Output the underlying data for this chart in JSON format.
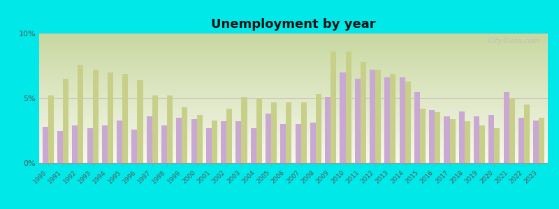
{
  "title": "Unemployment by year",
  "years": [
    1990,
    1991,
    1992,
    1993,
    1994,
    1995,
    1996,
    1997,
    1998,
    1999,
    2000,
    2001,
    2002,
    2003,
    2004,
    2005,
    2006,
    2007,
    2008,
    2009,
    2010,
    2011,
    2012,
    2013,
    2014,
    2015,
    2016,
    2017,
    2018,
    2019,
    2020,
    2021,
    2022,
    2023
  ],
  "castine": [
    2.8,
    2.5,
    2.9,
    2.7,
    2.9,
    3.3,
    2.6,
    3.6,
    2.9,
    3.5,
    3.4,
    2.7,
    3.2,
    3.2,
    2.7,
    3.8,
    3.0,
    3.0,
    3.1,
    5.1,
    7.0,
    6.5,
    7.2,
    6.6,
    6.6,
    5.5,
    4.1,
    3.6,
    4.0,
    3.6,
    3.7,
    5.5,
    3.5,
    3.3
  ],
  "maine": [
    5.2,
    6.5,
    7.6,
    7.2,
    7.0,
    6.9,
    6.4,
    5.2,
    5.2,
    4.3,
    3.7,
    3.3,
    4.2,
    5.1,
    5.0,
    4.7,
    4.7,
    4.7,
    5.3,
    8.6,
    8.6,
    7.8,
    7.2,
    6.9,
    6.3,
    4.2,
    3.9,
    3.4,
    3.2,
    2.9,
    2.7,
    5.0,
    4.5,
    3.5
  ],
  "castine_color": "#c9a8d4",
  "maine_color": "#c8cf88",
  "background": "#00e8e8",
  "plot_bg_top": "#c8d8a0",
  "plot_bg_bottom": "#f8f8ee",
  "ylim": [
    0,
    10
  ],
  "yticks": [
    0,
    5,
    10
  ],
  "ytick_labels": [
    "0%",
    "5%",
    "10%"
  ]
}
